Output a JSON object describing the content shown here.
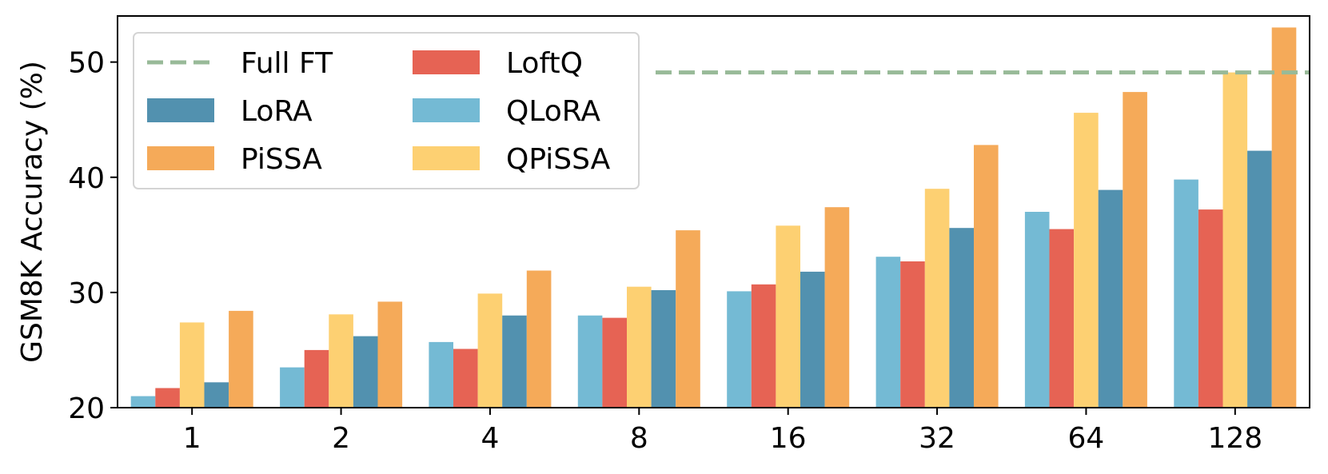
{
  "chart_data": {
    "type": "bar",
    "title": "",
    "xlabel": "",
    "ylabel": "GSM8K Accuracy (%)",
    "ylim": [
      20,
      54
    ],
    "yticks": [
      20,
      30,
      40,
      50
    ],
    "categories": [
      "1",
      "2",
      "4",
      "8",
      "16",
      "32",
      "64",
      "128"
    ],
    "series": [
      {
        "name": "QLoRA",
        "color": "#74BAD4",
        "values": [
          21.0,
          23.5,
          25.7,
          28.0,
          30.1,
          33.1,
          37.0,
          39.8
        ]
      },
      {
        "name": "LoftQ",
        "color": "#E66354",
        "values": [
          21.7,
          25.0,
          25.1,
          27.8,
          30.7,
          32.7,
          35.5,
          37.2
        ]
      },
      {
        "name": "QPiSSA",
        "color": "#FDD072",
        "values": [
          27.4,
          28.1,
          29.9,
          30.5,
          35.8,
          39.0,
          45.6,
          49.1
        ]
      },
      {
        "name": "LoRA",
        "color": "#5291AF",
        "values": [
          22.2,
          26.2,
          28.0,
          30.2,
          31.8,
          35.6,
          38.9,
          42.3
        ]
      },
      {
        "name": "PiSSA",
        "color": "#F5AA59",
        "values": [
          28.4,
          29.2,
          31.9,
          35.4,
          37.4,
          42.8,
          47.4,
          53.0
        ]
      }
    ],
    "reference_line": {
      "name": "Full FT",
      "value": 49.1,
      "color": "#98BA98",
      "style": "dashed"
    },
    "legend": {
      "placement": "top-left",
      "columns": 2,
      "entries": [
        "Full FT",
        "LoRA",
        "PiSSA",
        "LoftQ",
        "QLoRA",
        "QPiSSA"
      ]
    },
    "grid": false
  }
}
